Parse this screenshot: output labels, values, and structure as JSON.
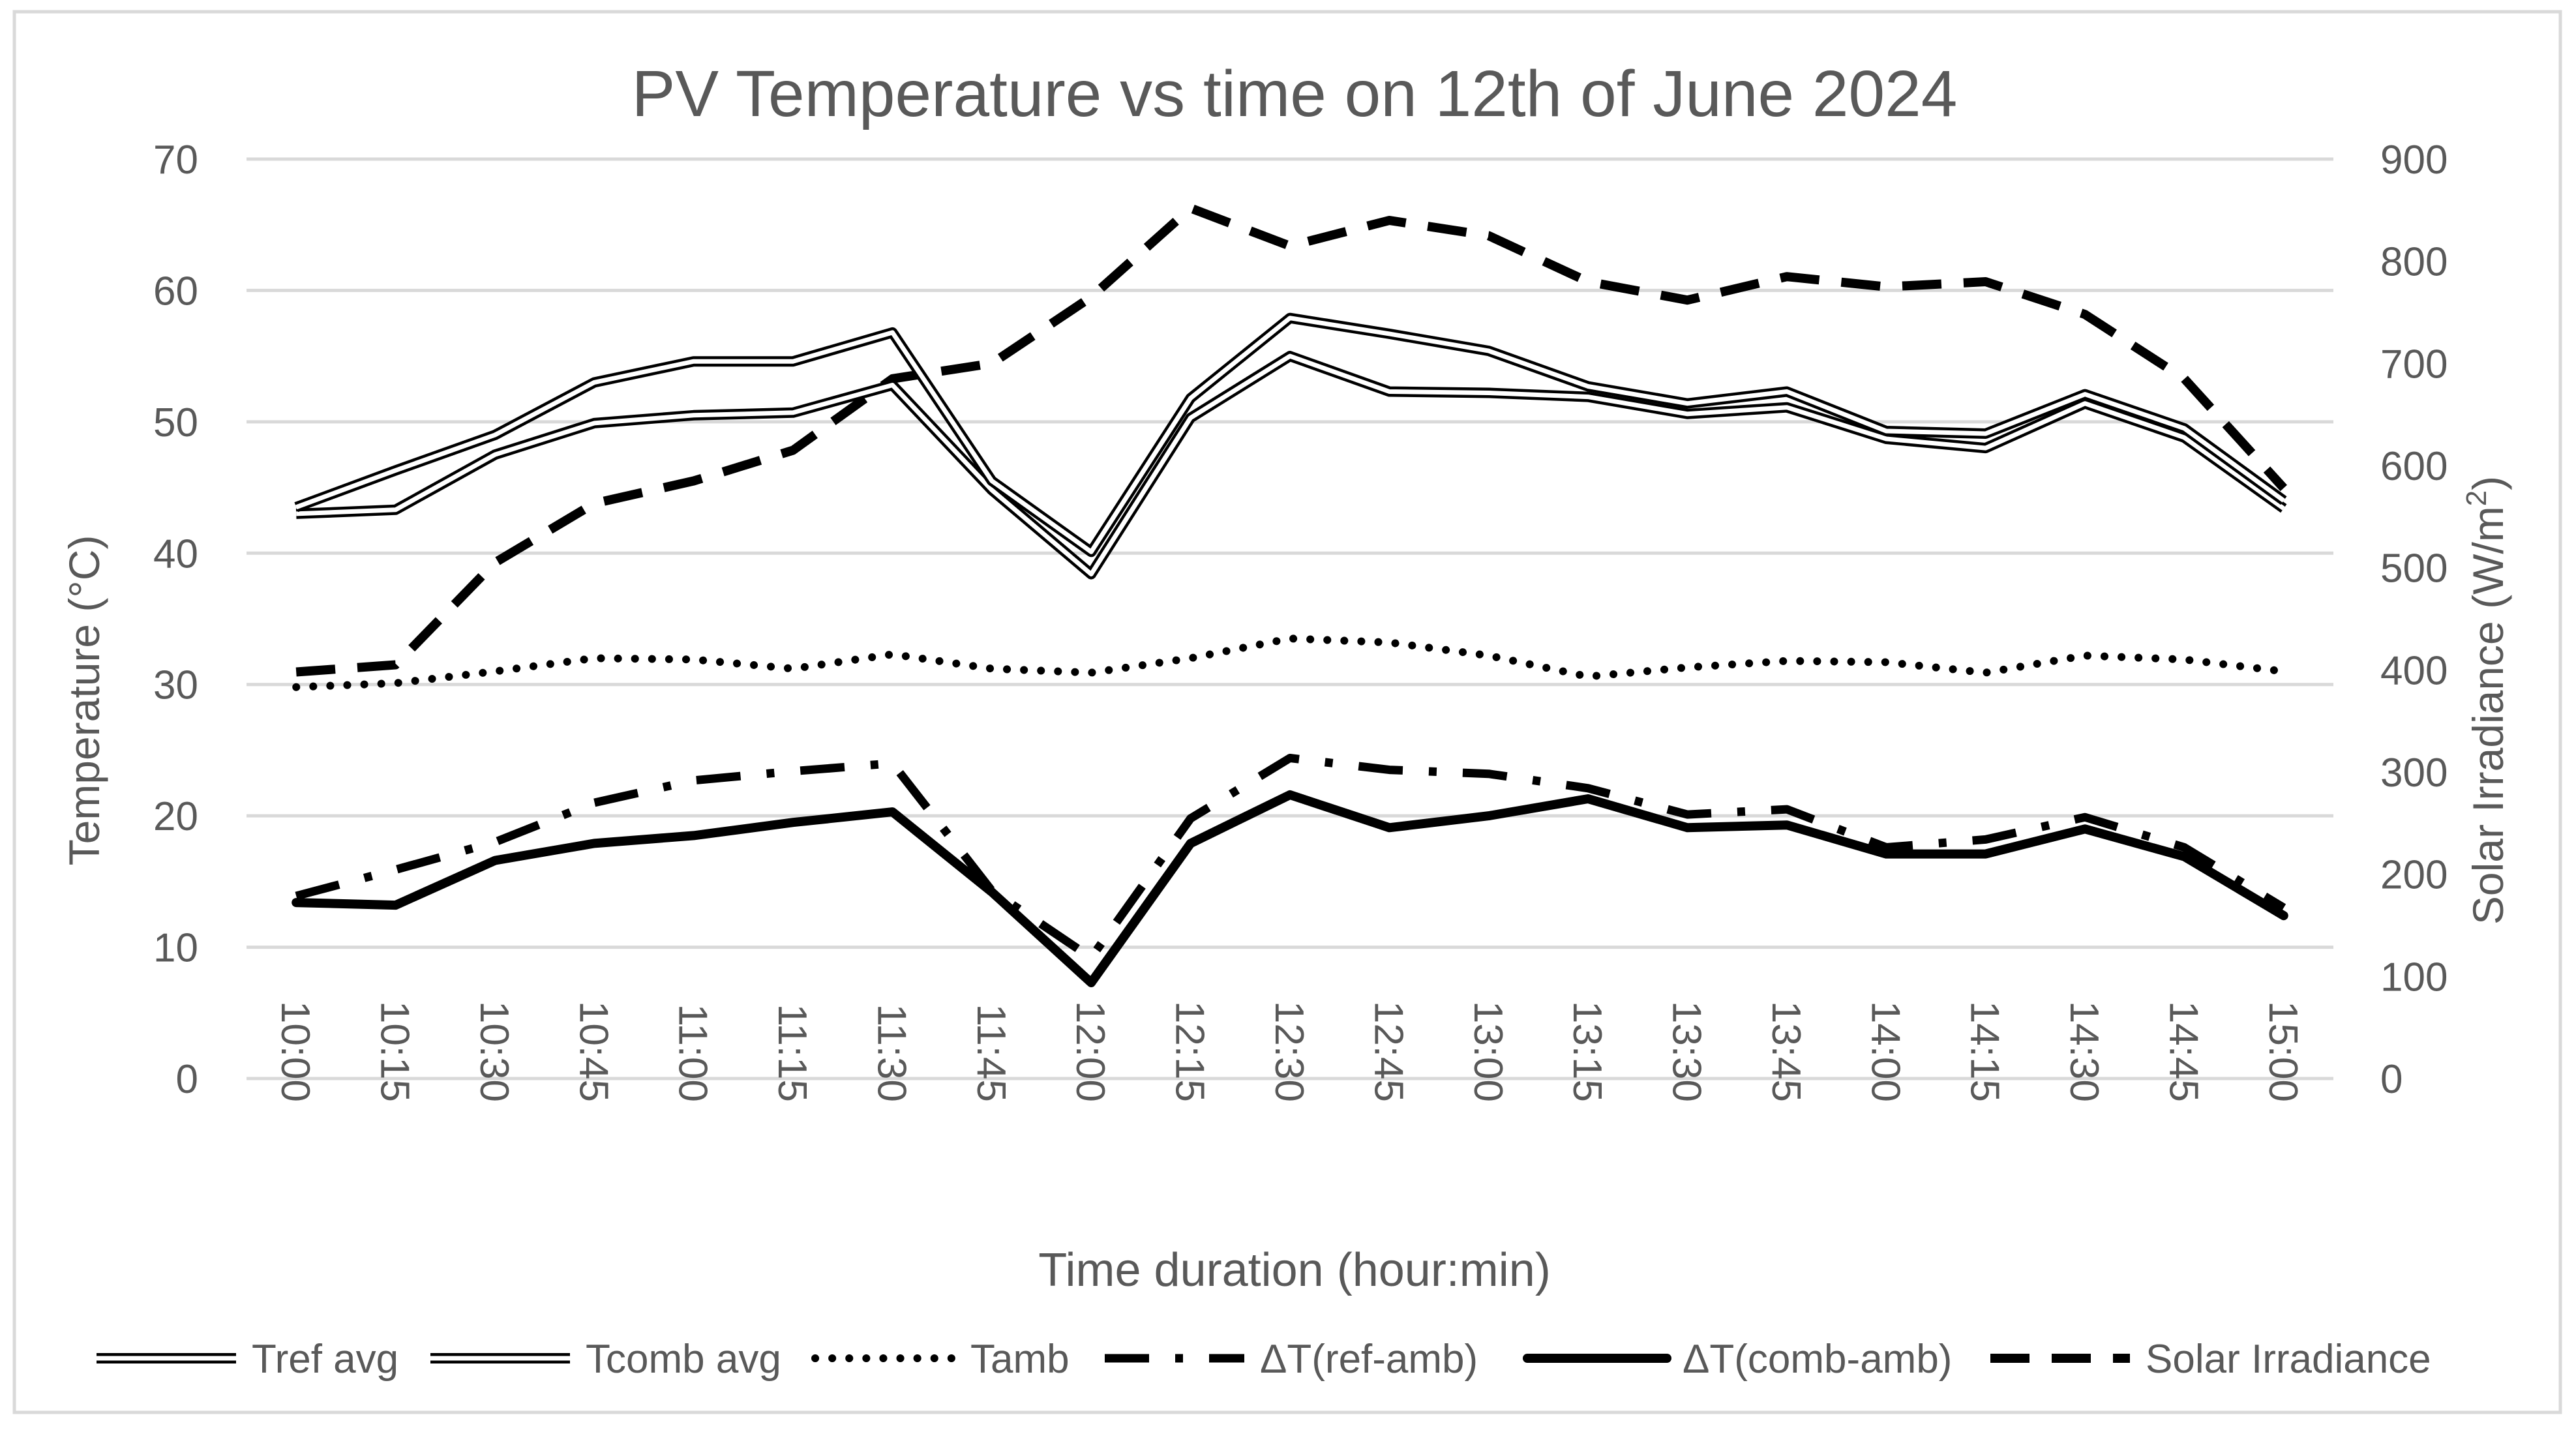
{
  "chart_data": {
    "type": "line",
    "title": "PV Temperature vs time on 12th of June 2024",
    "xlabel": "Time duration (hour:min)",
    "ylabel": "Temperature (°C)",
    "y2label_prefix": "Solar Irradiance (W/m",
    "y2label_sup": "2",
    "y2label_suffix": ")",
    "ylim": [
      0,
      70
    ],
    "y2lim": [
      0,
      900
    ],
    "yticks": [
      0,
      10,
      20,
      30,
      40,
      50,
      60,
      70
    ],
    "y2ticks": [
      0,
      100,
      200,
      300,
      400,
      500,
      600,
      700,
      800,
      900
    ],
    "grid": true,
    "legend_position": "bottom",
    "categories": [
      "10:00",
      "10:15",
      "10:30",
      "10:45",
      "11:00",
      "11:15",
      "11:30",
      "11:45",
      "12:00",
      "12:15",
      "12:30",
      "12:45",
      "13:00",
      "13:15",
      "13:30",
      "13:45",
      "14:00",
      "14:15",
      "14:30",
      "14:45",
      "15:00"
    ],
    "series": [
      {
        "name": "Tref avg",
        "axis": "left",
        "style": "double",
        "values": [
          43.5,
          46.3,
          49.0,
          53.0,
          54.6,
          54.6,
          56.8,
          45.5,
          40.1,
          51.8,
          57.9,
          56.7,
          55.4,
          52.7,
          51.4,
          52.3,
          49.3,
          49.1,
          52.1,
          49.5,
          44.0
        ]
      },
      {
        "name": "Tcomb avg",
        "axis": "left",
        "style": "double",
        "values": [
          43.0,
          43.3,
          47.5,
          49.9,
          50.5,
          50.7,
          52.8,
          44.8,
          38.4,
          50.3,
          55.0,
          52.3,
          52.2,
          51.9,
          50.6,
          51.1,
          48.7,
          48.0,
          51.4,
          48.8,
          43.4
        ]
      },
      {
        "name": "Tamb",
        "axis": "left",
        "style": "dotted",
        "values": [
          29.8,
          30.1,
          31.0,
          32.0,
          31.9,
          31.2,
          32.3,
          31.2,
          30.9,
          32.0,
          33.5,
          33.2,
          32.2,
          30.6,
          31.3,
          31.8,
          31.7,
          30.9,
          32.2,
          31.9,
          31.0
        ]
      },
      {
        "name": "ΔT(ref-amb)",
        "axis": "left",
        "style": "dashdot",
        "values": [
          13.9,
          15.9,
          18.0,
          21.0,
          22.7,
          23.4,
          24.0,
          14.3,
          9.2,
          19.8,
          24.4,
          23.5,
          23.2,
          22.1,
          20.1,
          20.5,
          17.6,
          18.2,
          19.9,
          17.6,
          13.0
        ]
      },
      {
        "name": "ΔT(comb-amb)",
        "axis": "left",
        "style": "solid",
        "values": [
          13.4,
          13.2,
          16.6,
          17.9,
          18.5,
          19.5,
          20.3,
          14.2,
          7.3,
          17.9,
          21.6,
          19.1,
          20.0,
          21.3,
          19.1,
          19.3,
          17.1,
          17.1,
          19.0,
          16.9,
          12.4
        ]
      },
      {
        "name": "Solar Irradiance",
        "axis": "right",
        "style": "dashed",
        "values": [
          398,
          405,
          505,
          563,
          585,
          615,
          685,
          700,
          765,
          852,
          815,
          840,
          825,
          780,
          762,
          785,
          775,
          780,
          748,
          685,
          578
        ]
      }
    ]
  }
}
